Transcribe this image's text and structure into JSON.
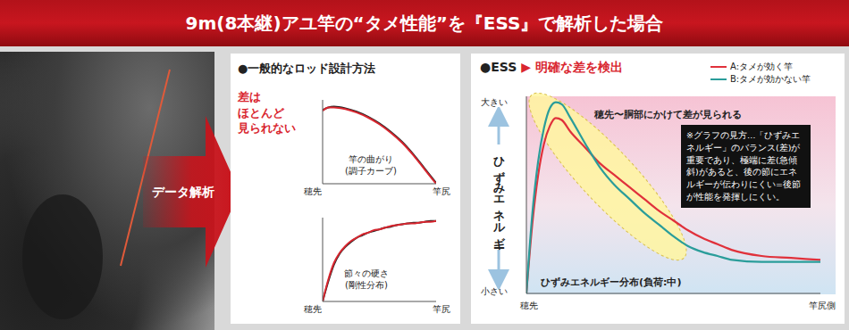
{
  "title": "9m(8本継)アユ竿の“タメ性能”を『ESS』で解析した場合",
  "arrow_label": "データ解析",
  "left_panel": {
    "heading": "●一般的なロッド設計方法",
    "callout": "差は\nほとんど\n見られない"
  },
  "chart_data": [
    {
      "type": "line",
      "title": "竿の曲がり\n(調子カーブ)",
      "x_axis_ends": [
        "穂先",
        "竿尻"
      ],
      "x": [
        0,
        5,
        10,
        20,
        30,
        40,
        50,
        60,
        70,
        80,
        90,
        100
      ],
      "series": [
        {
          "color": "#222222",
          "values": [
            88,
            91,
            92,
            90,
            86,
            80,
            72,
            62,
            50,
            35,
            18,
            1
          ]
        },
        {
          "color": "#d9262f",
          "values": [
            87,
            91,
            91,
            89,
            85,
            79,
            71,
            61,
            49,
            34,
            17,
            0
          ]
        }
      ],
      "xlim": [
        0,
        100
      ],
      "ylim": [
        0,
        100
      ],
      "tick_labels": false
    },
    {
      "type": "line",
      "title": "節々の硬さ\n(剛性分布)",
      "x_axis_ends": [
        "穂先",
        "竿尻"
      ],
      "x": [
        0,
        5,
        10,
        15,
        20,
        25,
        30,
        35,
        40,
        45,
        50,
        55,
        60,
        65,
        70,
        75,
        80,
        85,
        90,
        95,
        100
      ],
      "series": [
        {
          "color": "#222222",
          "values": [
            0,
            24,
            44,
            57,
            65,
            71,
            76,
            79,
            82,
            84,
            86,
            88,
            89,
            91,
            92,
            93,
            94,
            94,
            95,
            96,
            96
          ]
        },
        {
          "color": "#d9262f",
          "values": [
            0,
            26,
            46,
            58,
            66,
            72,
            76,
            80,
            82,
            85,
            86,
            88,
            90,
            91,
            92,
            93,
            93,
            94,
            95,
            95,
            96
          ]
        }
      ],
      "xlim": [
        0,
        100
      ],
      "ylim": [
        0,
        100
      ],
      "tick_labels": false
    },
    {
      "type": "line",
      "title": "●ESS",
      "subtitle": "▶ 明確な差を検出",
      "ylabel": "ひずみエネルギー",
      "y_axis_ends": [
        "小さい",
        "大きい"
      ],
      "x_axis_ends": [
        "穂先",
        "竿尻側"
      ],
      "caption": "ひずみエネルギー分布(負荷:中)",
      "annotations": [
        "穂先〜胴部にかけて差が見られる",
        "※グラフの見方…「ひずみエネルギー」のバランス(差)が重要であり、極端に差(急傾斜)があると、後の節にエネルギーが伝わりにくい=後節が性能を発揮しにくい。"
      ],
      "legend": "top-right",
      "x": [
        0,
        2,
        4,
        6,
        8,
        10,
        12,
        15,
        20,
        25,
        30,
        35,
        40,
        45,
        50,
        55,
        60,
        65,
        70,
        80,
        90,
        100
      ],
      "series": [
        {
          "name": "A:タメが効く竿",
          "color": "#e0313b",
          "values": [
            0,
            35,
            60,
            76,
            85,
            89,
            88,
            82,
            74,
            66,
            60,
            54,
            48,
            42,
            37,
            32,
            28,
            25,
            22,
            19,
            18,
            17
          ]
        },
        {
          "name": "B:タメが効かない竿",
          "color": "#2a9d9a",
          "values": [
            0,
            40,
            67,
            84,
            94,
            97,
            96,
            89,
            76,
            64,
            55,
            48,
            41,
            35,
            29,
            24,
            21,
            19,
            17,
            16,
            16,
            16
          ]
        }
      ],
      "xlim": [
        0,
        100
      ],
      "ylim": [
        0,
        100
      ],
      "tick_labels": false
    }
  ]
}
